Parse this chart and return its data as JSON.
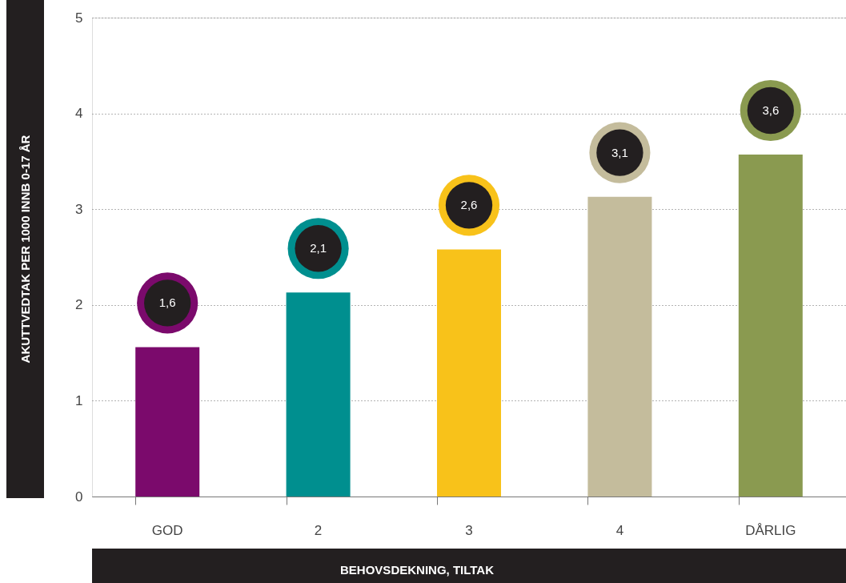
{
  "chart_data": {
    "type": "bar",
    "xlabel": "BEHOVSDEKNING, TILTAK",
    "ylabel": "AKUTTVEDTAK PER 1000 INNB 0-17 ÅR",
    "categories": [
      "GOD",
      "2",
      "3",
      "4",
      "DÅRLIG"
    ],
    "values": [
      1.56,
      2.13,
      2.58,
      3.13,
      3.57
    ],
    "colors": [
      "#7b0a6c",
      "#008f8f",
      "#f8c21a",
      "#c4bc9c",
      "#8a9a50"
    ],
    "value_labels": [
      "1,6",
      "2,1",
      "2,6",
      "3,1",
      "3,6"
    ],
    "ylim": [
      0,
      5
    ],
    "yticks": [
      0,
      1,
      2,
      3,
      4,
      5
    ],
    "grid": "y"
  }
}
